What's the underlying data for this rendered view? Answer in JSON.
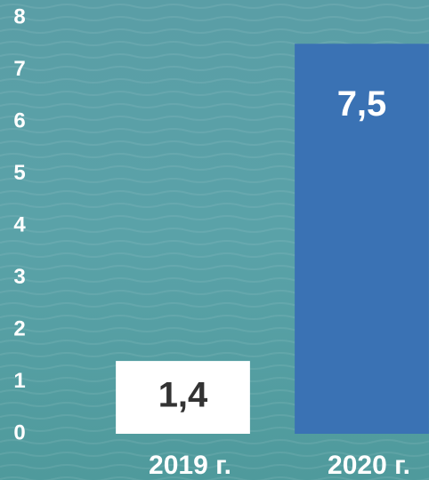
{
  "chart_data": {
    "type": "bar",
    "categories": [
      "2019 г.",
      "2020 г."
    ],
    "values": [
      1.4,
      7.5
    ],
    "value_labels": [
      "1,4",
      "7,5"
    ],
    "colors": [
      "#ffffff",
      "#3a72b4"
    ],
    "label_colors": [
      "#333333",
      "#ffffff"
    ],
    "ylim": [
      0,
      8
    ],
    "yticks": [
      0,
      1,
      2,
      3,
      4,
      5,
      6,
      7,
      8
    ],
    "grid": false
  }
}
